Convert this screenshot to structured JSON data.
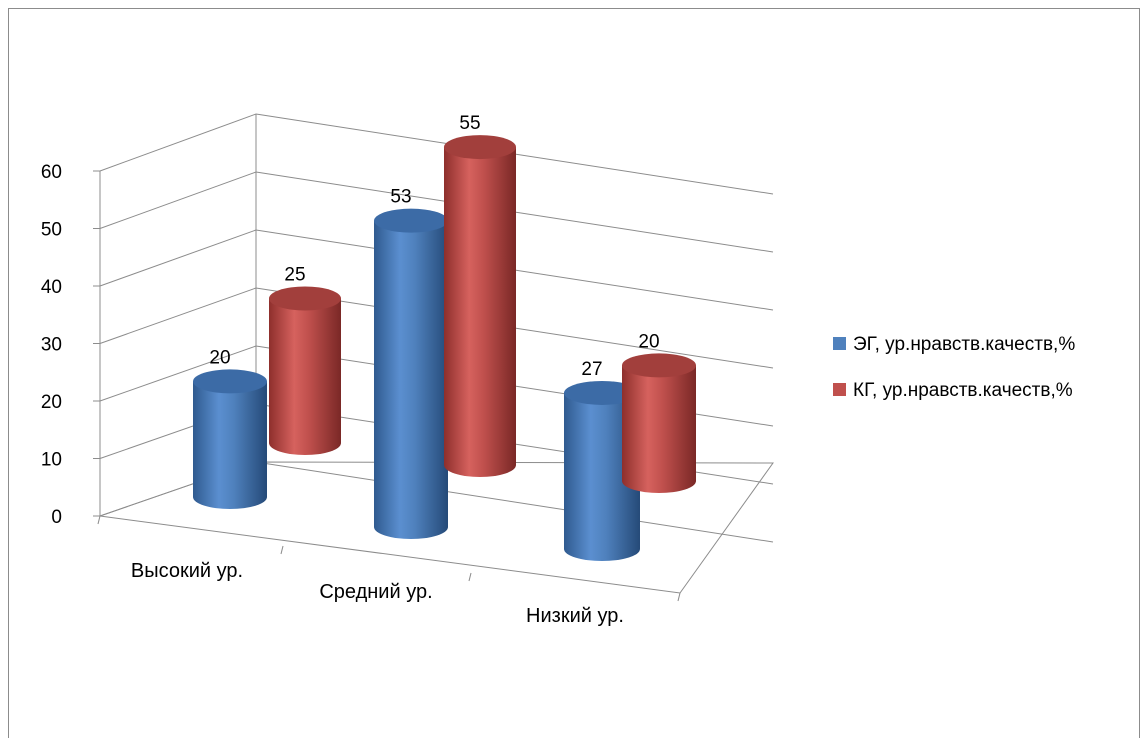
{
  "chart_data": {
    "type": "bar",
    "style": "3d-cylinder",
    "categories": [
      "Высокий ур.",
      "Средний ур.",
      "Низкий ур."
    ],
    "series": [
      {
        "name": "ЭГ, ур.нравств.качеств,%",
        "color": "#4f81bd",
        "values": [
          20,
          53,
          27
        ]
      },
      {
        "name": "КГ, ур.нравств.качеств,%",
        "color": "#c0504d",
        "values": [
          25,
          55,
          20
        ]
      }
    ],
    "y_ticks": [
      "0",
      "10",
      "20",
      "30",
      "40",
      "50",
      "60"
    ],
    "ylim": [
      0,
      60
    ],
    "grid": true,
    "legend_position": "right"
  }
}
